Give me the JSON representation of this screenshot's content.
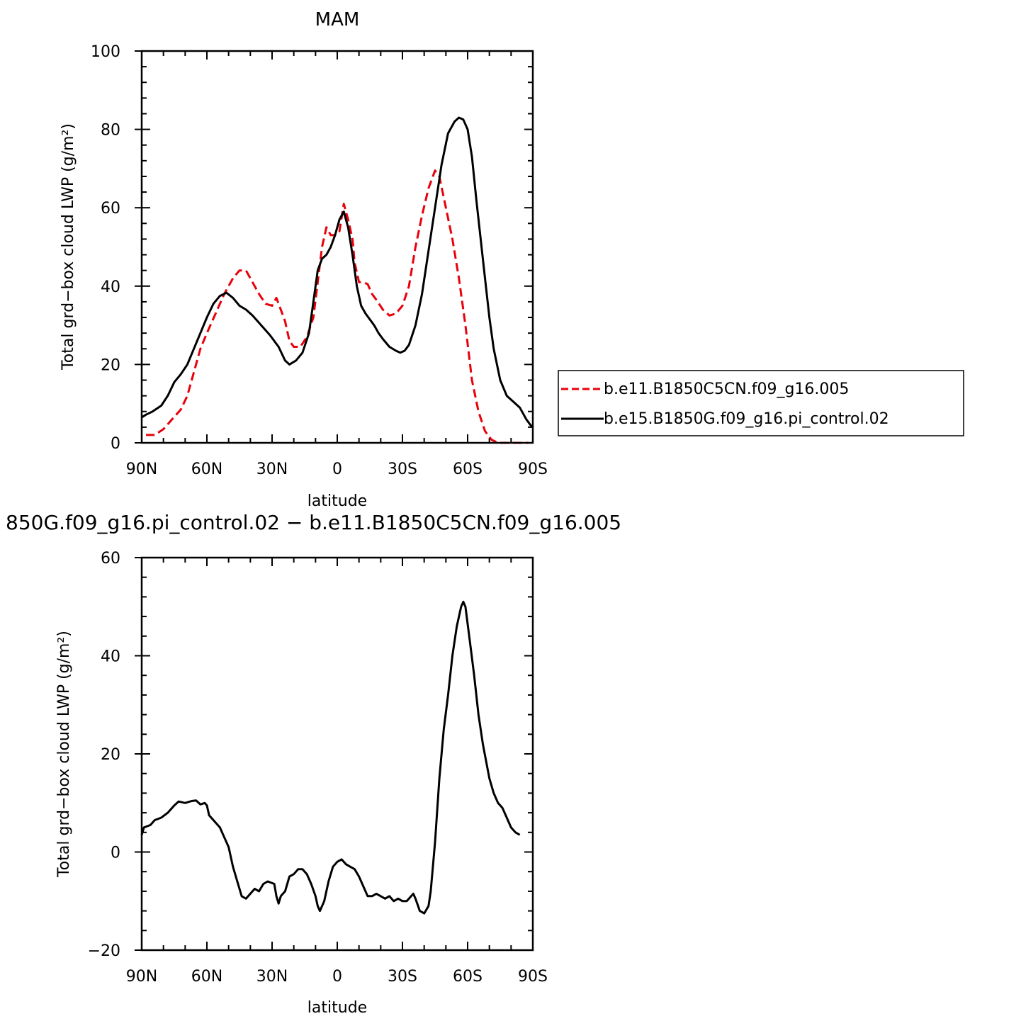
{
  "chart_data": [
    {
      "type": "line",
      "title": "MAM",
      "xlabel": "latitude",
      "ylabel": "Total grd−box cloud LWP (g/m²)",
      "xlim": [
        -90,
        90
      ],
      "ylim": [
        0,
        100
      ],
      "x_ticks": [
        -90,
        -60,
        -30,
        0,
        30,
        60,
        90
      ],
      "x_tick_labels": [
        "90N",
        "60N",
        "30N",
        "0",
        "30S",
        "60S",
        "90S"
      ],
      "y_ticks": [
        0,
        20,
        40,
        60,
        80,
        100
      ],
      "y_tick_labels": [
        "0",
        "20",
        "40",
        "60",
        "80",
        "100"
      ],
      "legend_position": "right",
      "series": [
        {
          "name": "b.e11.B1850C5CN.f09_g16.005",
          "color": "#e8000b",
          "dash": "dashed",
          "points": [
            [
              -88,
              2
            ],
            [
              -84,
              2
            ],
            [
              -80,
              3.5
            ],
            [
              -76,
              6
            ],
            [
              -72,
              8.5
            ],
            [
              -69,
              12
            ],
            [
              -66,
              18
            ],
            [
              -63,
              24
            ],
            [
              -60,
              28
            ],
            [
              -56,
              33
            ],
            [
              -52,
              38
            ],
            [
              -48,
              42
            ],
            [
              -45,
              44
            ],
            [
              -42,
              44
            ],
            [
              -39,
              41
            ],
            [
              -36,
              38
            ],
            [
              -33,
              35.5
            ],
            [
              -30,
              35
            ],
            [
              -28,
              37
            ],
            [
              -26,
              34
            ],
            [
              -24,
              31
            ],
            [
              -22,
              26
            ],
            [
              -20,
              24.5
            ],
            [
              -17,
              24.5
            ],
            [
              -14,
              27
            ],
            [
              -11,
              32
            ],
            [
              -9,
              41
            ],
            [
              -7,
              50
            ],
            [
              -5,
              55
            ],
            [
              -3,
              53
            ],
            [
              -1,
              53
            ],
            [
              1,
              54
            ],
            [
              3,
              61
            ],
            [
              5,
              57
            ],
            [
              7,
              52
            ],
            [
              8,
              46
            ],
            [
              10,
              41
            ],
            [
              12,
              41
            ],
            [
              14,
              40.5
            ],
            [
              16,
              38
            ],
            [
              18,
              36.5
            ],
            [
              21,
              34
            ],
            [
              24,
              32.5
            ],
            [
              27,
              33
            ],
            [
              30,
              35
            ],
            [
              33,
              40
            ],
            [
              36,
              50
            ],
            [
              39,
              58
            ],
            [
              42,
              65
            ],
            [
              45,
              69.5
            ],
            [
              47,
              68
            ],
            [
              50,
              60
            ],
            [
              53,
              52
            ],
            [
              56,
              42
            ],
            [
              59,
              30
            ],
            [
              62,
              16
            ],
            [
              65,
              8
            ],
            [
              68,
              3
            ],
            [
              71,
              0.8
            ],
            [
              74,
              0
            ],
            [
              80,
              0
            ],
            [
              88,
              0
            ]
          ]
        },
        {
          "name": "b.e15.B1850G.f09_g16.pi_control.02",
          "color": "#000000",
          "dash": "solid",
          "points": [
            [
              -90,
              6.5
            ],
            [
              -88,
              7.2
            ],
            [
              -85,
              8
            ],
            [
              -81,
              9.5
            ],
            [
              -78,
              12
            ],
            [
              -75,
              15.5
            ],
            [
              -72,
              17.5
            ],
            [
              -69,
              20
            ],
            [
              -66,
              24
            ],
            [
              -63,
              28
            ],
            [
              -60,
              32
            ],
            [
              -57,
              35.5
            ],
            [
              -54,
              37.5
            ],
            [
              -51,
              38.3
            ],
            [
              -48,
              37
            ],
            [
              -45,
              35
            ],
            [
              -42,
              34
            ],
            [
              -39,
              32.5
            ],
            [
              -35,
              30
            ],
            [
              -31,
              27.5
            ],
            [
              -27,
              24.5
            ],
            [
              -24,
              21
            ],
            [
              -22,
              20
            ],
            [
              -19,
              21
            ],
            [
              -16,
              23
            ],
            [
              -13,
              28
            ],
            [
              -11,
              36
            ],
            [
              -9,
              44
            ],
            [
              -7,
              47
            ],
            [
              -5,
              48
            ],
            [
              -3,
              50
            ],
            [
              -1,
              53
            ],
            [
              1,
              57
            ],
            [
              3,
              59
            ],
            [
              5,
              55
            ],
            [
              7,
              48
            ],
            [
              9,
              40
            ],
            [
              11,
              35
            ],
            [
              13,
              33
            ],
            [
              15,
              31.5
            ],
            [
              17,
              30
            ],
            [
              19,
              28
            ],
            [
              21,
              26.5
            ],
            [
              24,
              24.5
            ],
            [
              27,
              23.5
            ],
            [
              29,
              23
            ],
            [
              31,
              23.5
            ],
            [
              33,
              25
            ],
            [
              36,
              30
            ],
            [
              39,
              38
            ],
            [
              42,
              49
            ],
            [
              45,
              60
            ],
            [
              48,
              71
            ],
            [
              51,
              79
            ],
            [
              54,
              82
            ],
            [
              56,
              83
            ],
            [
              58,
              82.5
            ],
            [
              60,
              80
            ],
            [
              62,
              73
            ],
            [
              64,
              62
            ],
            [
              66,
              52
            ],
            [
              68,
              42
            ],
            [
              70,
              32
            ],
            [
              72,
              24
            ],
            [
              75,
              16
            ],
            [
              78,
              12
            ],
            [
              81,
              10.5
            ],
            [
              84,
              9
            ],
            [
              87,
              6
            ],
            [
              89,
              4.5
            ],
            [
              90,
              4
            ]
          ]
        }
      ]
    },
    {
      "type": "line",
      "title": "850G.f09_g16.pi_control.02 − b.e11.B1850C5CN.f09_g16.005",
      "xlabel": "latitude",
      "ylabel": "Total grd−box cloud LWP (g/m²)",
      "xlim": [
        -90,
        90
      ],
      "ylim": [
        -20,
        60
      ],
      "x_ticks": [
        -90,
        -60,
        -30,
        0,
        30,
        60,
        90
      ],
      "x_tick_labels": [
        "90N",
        "60N",
        "30N",
        "0",
        "30S",
        "60S",
        "90S"
      ],
      "y_ticks": [
        -20,
        0,
        20,
        40,
        60
      ],
      "y_tick_labels": [
        "−20",
        "0",
        "20",
        "40",
        "60"
      ],
      "series": [
        {
          "color": "#000000",
          "dash": "solid",
          "points": [
            [
              -90,
              3.5
            ],
            [
              -89,
              5
            ],
            [
              -86,
              5.5
            ],
            [
              -84,
              6.5
            ],
            [
              -81,
              7
            ],
            [
              -78,
              8
            ],
            [
              -75,
              9.5
            ],
            [
              -73,
              10.3
            ],
            [
              -70,
              10
            ],
            [
              -67,
              10.4
            ],
            [
              -65,
              10.5
            ],
            [
              -63,
              9.7
            ],
            [
              -61,
              10
            ],
            [
              -60,
              9.5
            ],
            [
              -59,
              7.5
            ],
            [
              -57,
              6.5
            ],
            [
              -54,
              5
            ],
            [
              -52,
              3
            ],
            [
              -50,
              1
            ],
            [
              -48,
              -3
            ],
            [
              -46,
              -6
            ],
            [
              -44,
              -9
            ],
            [
              -42,
              -9.5
            ],
            [
              -40,
              -8.5
            ],
            [
              -38,
              -7.5
            ],
            [
              -36,
              -8
            ],
            [
              -34,
              -6.5
            ],
            [
              -32,
              -6
            ],
            [
              -29,
              -6.5
            ],
            [
              -28,
              -9
            ],
            [
              -27,
              -10.5
            ],
            [
              -26,
              -9
            ],
            [
              -24,
              -8
            ],
            [
              -22,
              -5
            ],
            [
              -20,
              -4.5
            ],
            [
              -18,
              -3.5
            ],
            [
              -16,
              -3.5
            ],
            [
              -14,
              -4.5
            ],
            [
              -12,
              -6.5
            ],
            [
              -10,
              -9
            ],
            [
              -9,
              -11
            ],
            [
              -8,
              -12
            ],
            [
              -6,
              -10
            ],
            [
              -4,
              -6
            ],
            [
              -2,
              -3
            ],
            [
              0,
              -2
            ],
            [
              2,
              -1.5
            ],
            [
              4,
              -2.5
            ],
            [
              6,
              -3
            ],
            [
              8,
              -3.5
            ],
            [
              10,
              -5
            ],
            [
              12,
              -7
            ],
            [
              14,
              -9
            ],
            [
              16,
              -9
            ],
            [
              18,
              -8.5
            ],
            [
              20,
              -9
            ],
            [
              22,
              -9.5
            ],
            [
              24,
              -9
            ],
            [
              26,
              -10
            ],
            [
              28,
              -9.5
            ],
            [
              30,
              -10
            ],
            [
              32,
              -10
            ],
            [
              34,
              -9
            ],
            [
              35,
              -8.5
            ],
            [
              36,
              -9.5
            ],
            [
              38,
              -12
            ],
            [
              40,
              -12.5
            ],
            [
              42,
              -11
            ],
            [
              43,
              -8
            ],
            [
              45,
              2
            ],
            [
              47,
              15
            ],
            [
              49,
              25
            ],
            [
              51,
              32
            ],
            [
              53,
              40
            ],
            [
              55,
              46
            ],
            [
              57,
              50
            ],
            [
              58,
              51
            ],
            [
              59,
              50
            ],
            [
              61,
              43
            ],
            [
              63,
              36
            ],
            [
              65,
              28
            ],
            [
              67,
              22
            ],
            [
              70,
              15
            ],
            [
              72,
              12
            ],
            [
              74,
              10
            ],
            [
              76,
              9
            ],
            [
              78,
              7
            ],
            [
              80,
              5
            ],
            [
              82,
              4
            ],
            [
              84,
              3.5
            ]
          ]
        }
      ]
    }
  ]
}
